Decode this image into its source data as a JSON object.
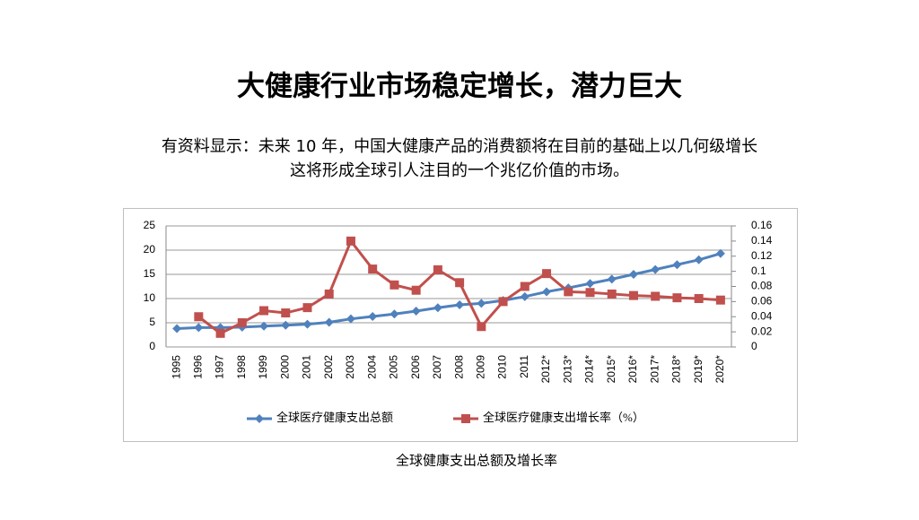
{
  "header": {
    "title": "大健康行业市场稳定增长，潜力巨大",
    "description": [
      "有资料显示：未来 10 年，中国大健康产品的消费额将在目前的基础上以几何级增长",
      "这将形成全球引人注目的一个兆亿价值的市场。"
    ]
  },
  "chart_data": {
    "type": "line",
    "categories": [
      "1995",
      "1996",
      "1997",
      "1998",
      "1999",
      "2000",
      "2001",
      "2002",
      "2003",
      "2004",
      "2005",
      "2006",
      "2007",
      "2008",
      "2009",
      "2010",
      "2011",
      "2012*",
      "2013*",
      "2014*",
      "2015*",
      "2016*",
      "2017*",
      "2018*",
      "2019*",
      "2020*"
    ],
    "series": [
      {
        "name": "全球医疗健康支出总额",
        "color": "#4f81bd",
        "marker": "diamond",
        "values": [
          3.8,
          4.0,
          4.0,
          4.1,
          4.3,
          4.5,
          4.7,
          5.1,
          5.8,
          6.3,
          6.8,
          7.4,
          8.1,
          8.7,
          9.0,
          9.6,
          10.4,
          11.4,
          12.2,
          13.1,
          14.0,
          15.0,
          16.0,
          17.0,
          18.0,
          19.3
        ]
      },
      {
        "name": "全球医疗健康支出增长率（%）",
        "color": "#c0504d",
        "marker": "square",
        "axis": "y2",
        "values": [
          null,
          0.04,
          0.018,
          0.032,
          0.048,
          0.045,
          0.052,
          0.07,
          0.14,
          0.103,
          0.082,
          0.075,
          0.102,
          0.085,
          0.027,
          0.06,
          0.08,
          0.097,
          0.073,
          0.072,
          0.07,
          0.068,
          0.067,
          0.065,
          0.064,
          0.062
        ]
      }
    ],
    "ylim": [
      0,
      25
    ],
    "yticks": [
      0,
      5,
      10,
      15,
      20,
      25
    ],
    "y2lim": [
      0,
      0.16
    ],
    "y2ticks": [
      0,
      0.02,
      0.04,
      0.06,
      0.08,
      0.1,
      0.12,
      0.14,
      0.16
    ],
    "legend": "bottom"
  },
  "caption": "全球健康支出总额及增长率"
}
